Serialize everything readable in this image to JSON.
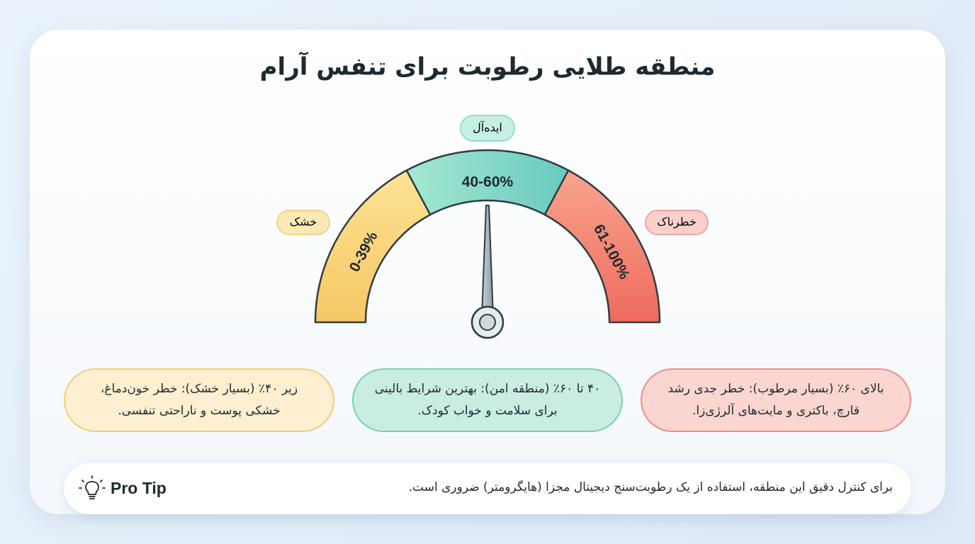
{
  "header": {
    "title": "منطقه طلایی رطوبت برای تنفس آرام"
  },
  "gauge": {
    "segments": [
      {
        "label": "0-39%",
        "badge": "خشک"
      },
      {
        "label": "40-60%",
        "badge": "ایده‌آل"
      },
      {
        "label": "61-100%",
        "badge": "خطرناک"
      }
    ]
  },
  "cards": [
    {
      "text": "زیر ۴۰٪ (بسیار خشک): خطر خون‌دماغ، خشکی پوست و ناراحتی تنفسی."
    },
    {
      "text": "۴۰ تا ۶۰٪ (منطقه امن): بهترین شرایط بالینی برای سلامت و خواب کودک."
    },
    {
      "text": "بالای ۶۰٪ (بسیار مرطوب): خطر جدی رشد قارچ، باکتری و مایت‌های آلرژی‌زا."
    }
  ],
  "tip": {
    "label": "Pro Tip",
    "text": "برای کنترل دقیق این منطقه، استفاده از یک رطوبت‌سنج دیجیتال مجزا (هایگرومتر) ضروری است."
  }
}
